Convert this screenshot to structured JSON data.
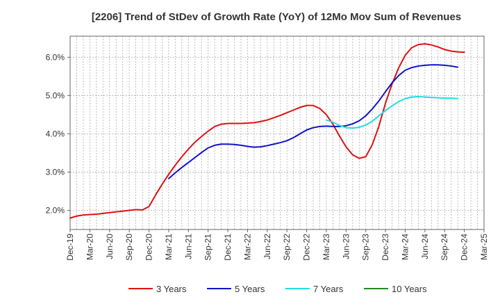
{
  "chart_data": {
    "type": "line",
    "title": "[2206]  Trend of StDev of Growth Rate (YoY) of 12Mo Mov Sum of Revenues",
    "xlabel": "",
    "ylabel": "",
    "x_ticks": [
      "Dec-19",
      "Mar-20",
      "Jun-20",
      "Sep-20",
      "Dec-20",
      "Mar-21",
      "Jun-21",
      "Sep-21",
      "Dec-21",
      "Mar-22",
      "Jun-22",
      "Sep-22",
      "Dec-22",
      "Mar-23",
      "Jun-23",
      "Sep-23",
      "Dec-23",
      "Mar-24",
      "Jun-24",
      "Sep-24",
      "Dec-24",
      "Mar-25"
    ],
    "y_ticks": [
      "2.0%",
      "3.0%",
      "4.0%",
      "5.0%",
      "6.0%"
    ],
    "y_tick_values": [
      2.0,
      3.0,
      4.0,
      5.0,
      6.0
    ],
    "ylim": [
      1.5,
      6.55
    ],
    "x_range_months": [
      0,
      63
    ],
    "grid": "dashed",
    "legend_position": "bottom",
    "series": [
      {
        "name": "3 Years",
        "color": "#dd1111",
        "start_month": 0,
        "values": [
          1.8,
          1.85,
          1.88,
          1.89,
          1.9,
          1.92,
          1.94,
          1.96,
          1.98,
          2.0,
          2.02,
          2.01,
          2.1,
          2.4,
          2.68,
          2.94,
          3.18,
          3.4,
          3.6,
          3.78,
          3.93,
          4.07,
          4.19,
          4.25,
          4.27,
          4.27,
          4.27,
          4.28,
          4.29,
          4.32,
          4.36,
          4.42,
          4.48,
          4.55,
          4.62,
          4.69,
          4.74,
          4.74,
          4.66,
          4.5,
          4.25,
          3.94,
          3.66,
          3.45,
          3.36,
          3.4,
          3.72,
          4.2,
          4.8,
          5.3,
          5.72,
          6.05,
          6.25,
          6.33,
          6.35,
          6.32,
          6.27,
          6.2,
          6.16,
          6.14,
          6.13
        ]
      },
      {
        "name": "5 Years",
        "color": "#1111cc",
        "start_month": 15,
        "values": [
          2.83,
          2.98,
          3.12,
          3.25,
          3.38,
          3.51,
          3.63,
          3.7,
          3.73,
          3.73,
          3.72,
          3.7,
          3.67,
          3.65,
          3.66,
          3.69,
          3.73,
          3.77,
          3.82,
          3.9,
          4.0,
          4.1,
          4.16,
          4.19,
          4.2,
          4.19,
          4.19,
          4.21,
          4.26,
          4.34,
          4.47,
          4.65,
          4.86,
          5.1,
          5.33,
          5.52,
          5.66,
          5.73,
          5.77,
          5.79,
          5.8,
          5.8,
          5.79,
          5.77,
          5.74
        ]
      },
      {
        "name": "7 Years",
        "color": "#22dddd",
        "start_month": 39,
        "values": [
          4.36,
          4.3,
          4.22,
          4.16,
          4.15,
          4.17,
          4.23,
          4.33,
          4.47,
          4.61,
          4.73,
          4.84,
          4.92,
          4.96,
          4.97,
          4.96,
          4.95,
          4.94,
          4.93,
          4.93,
          4.92
        ]
      },
      {
        "name": "10 Years",
        "color": "#228822",
        "start_month": 0,
        "values": []
      }
    ]
  }
}
